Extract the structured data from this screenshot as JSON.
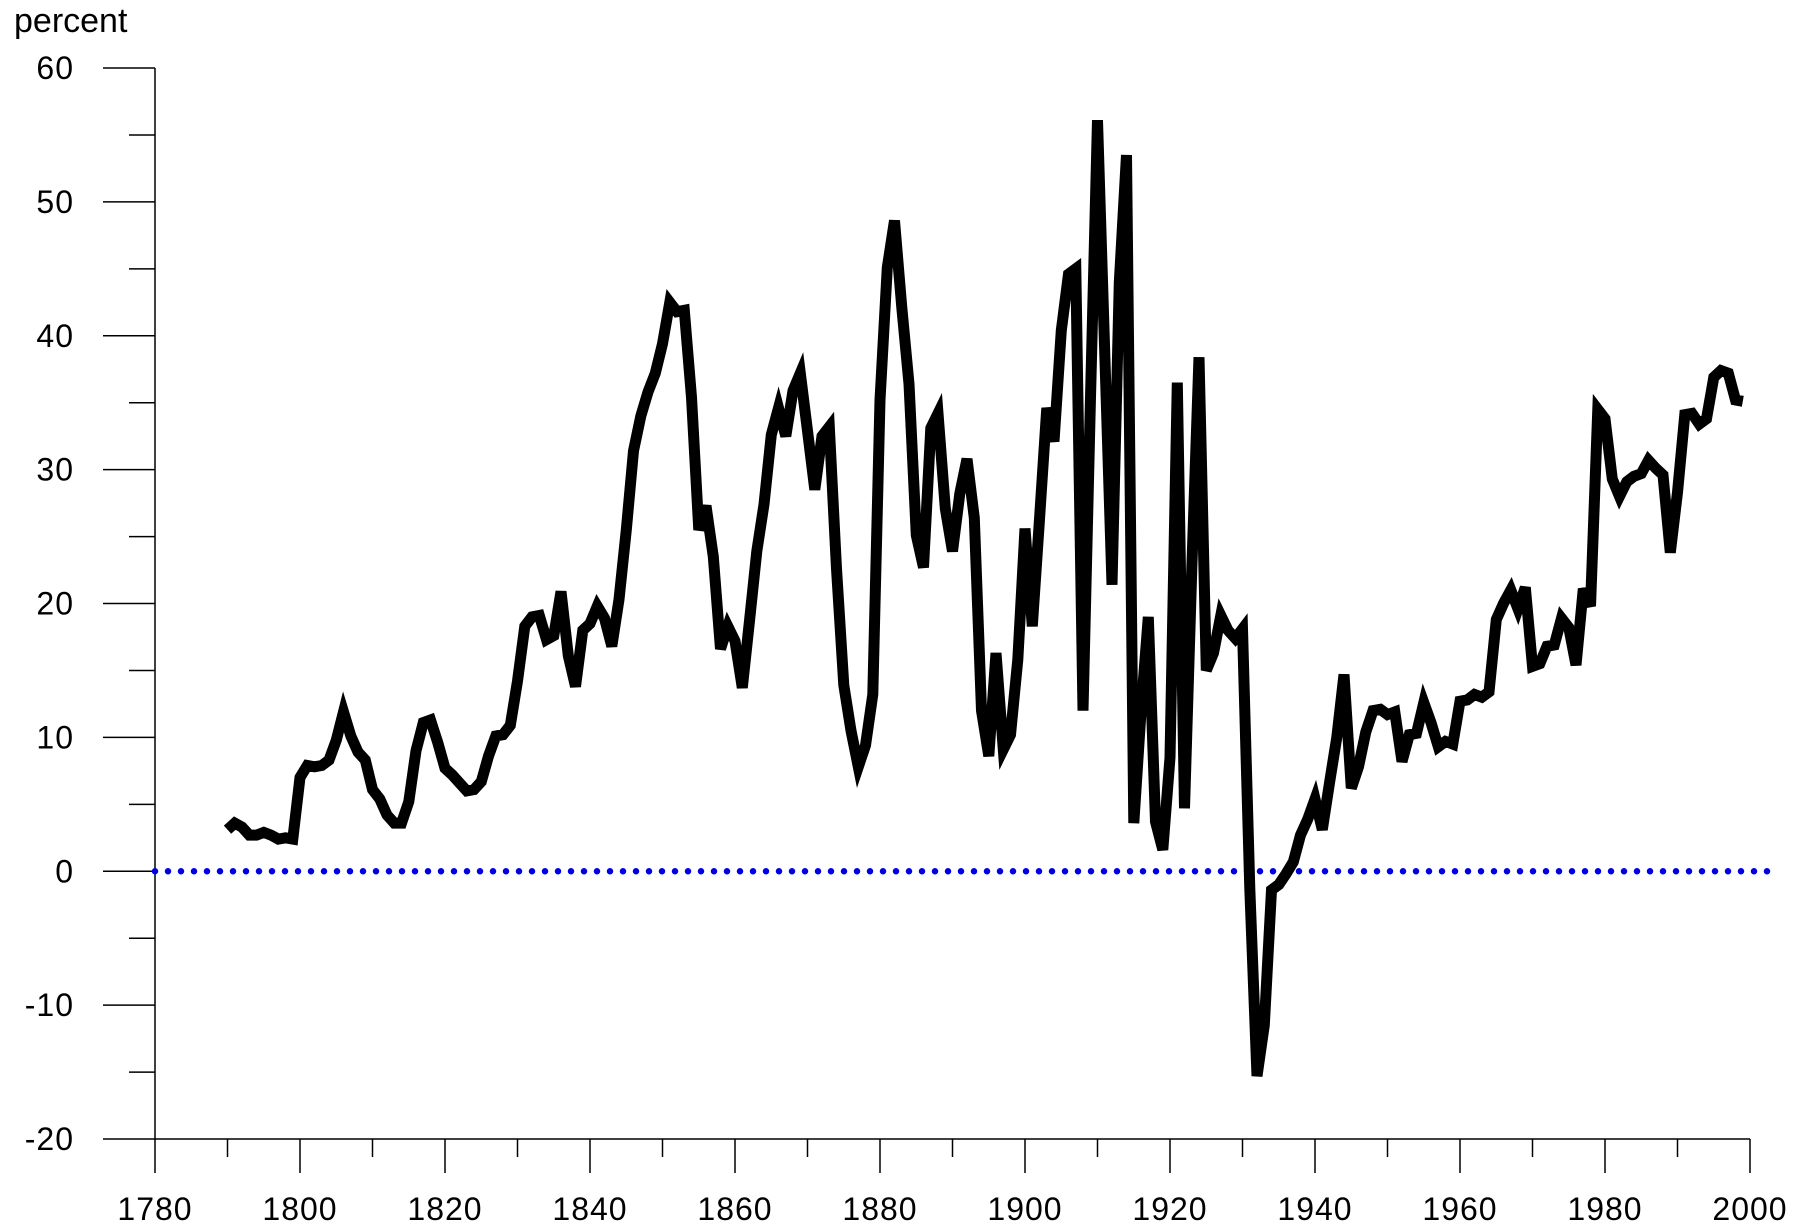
{
  "chart_data": {
    "type": "line",
    "y_unit_label": "percent",
    "xlim": [
      1780,
      2000
    ],
    "ylim": [
      -20,
      60
    ],
    "x_ticks": [
      "1780",
      "1800",
      "1820",
      "1840",
      "1860",
      "1880",
      "1900",
      "1920",
      "1940",
      "1960",
      "1980",
      "2000"
    ],
    "x_tick_values": [
      1780,
      1800,
      1820,
      1840,
      1860,
      1880,
      1900,
      1920,
      1940,
      1960,
      1980,
      2000
    ],
    "y_ticks": [
      "60",
      "50",
      "40",
      "30",
      "20",
      "10",
      "0",
      "-10",
      "-20"
    ],
    "y_tick_values": [
      60,
      50,
      40,
      30,
      20,
      10,
      0,
      -10,
      -20
    ],
    "reference_line": {
      "y": 0,
      "style": "dotted",
      "color": "#0000e6"
    },
    "series": [
      {
        "color": "#000000",
        "x": [
          1790,
          1791,
          1792,
          1793,
          1794,
          1795,
          1796,
          1797,
          1798,
          1799,
          1800,
          1801,
          1802,
          1803,
          1804,
          1805,
          1806,
          1807,
          1808,
          1809,
          1810,
          1811,
          1812,
          1813,
          1814,
          1815,
          1816,
          1817,
          1818,
          1819,
          1820,
          1821,
          1822,
          1823,
          1824,
          1825,
          1826,
          1827,
          1828,
          1829,
          1830,
          1831,
          1832,
          1833,
          1834,
          1835,
          1836,
          1837,
          1838,
          1839,
          1840,
          1841,
          1842,
          1843,
          1844,
          1845,
          1846,
          1847,
          1848,
          1849,
          1850,
          1851,
          1852,
          1853,
          1854,
          1855,
          1856,
          1857,
          1858,
          1859,
          1860,
          1861,
          1862,
          1863,
          1864,
          1865,
          1866,
          1867,
          1868,
          1869,
          1870,
          1871,
          1872,
          1873,
          1874,
          1875,
          1876,
          1877,
          1878,
          1879,
          1880,
          1881,
          1882,
          1883,
          1884,
          1885,
          1886,
          1887,
          1888,
          1889,
          1890,
          1891,
          1892,
          1893,
          1894,
          1895,
          1896,
          1897,
          1898,
          1899,
          1900,
          1901,
          1902,
          1903,
          1904,
          1905,
          1906,
          1907,
          1908,
          1909,
          1910,
          1911,
          1912,
          1913,
          1914,
          1915,
          1916,
          1917,
          1918,
          1919,
          1920,
          1921,
          1922,
          1923,
          1924,
          1925,
          1926,
          1927,
          1928,
          1929,
          1930,
          1931,
          1932,
          1933,
          1934,
          1935,
          1936,
          1937,
          1938,
          1939,
          1940,
          1941,
          1942,
          1943,
          1944,
          1945,
          1946,
          1947,
          1948,
          1949,
          1950,
          1951,
          1952,
          1953,
          1954,
          1955,
          1956,
          1957,
          1958,
          1959,
          1960,
          1961,
          1962,
          1963,
          1964,
          1965,
          1966,
          1967,
          1968,
          1969,
          1970,
          1971,
          1972,
          1973,
          1974,
          1975,
          1976,
          1977,
          1978,
          1979,
          1980,
          1981,
          1982,
          1983,
          1984,
          1985,
          1986,
          1987,
          1988,
          1989,
          1990,
          1991,
          1992,
          1993,
          1994,
          1995,
          1996,
          1997,
          1998,
          1999
        ],
        "y": [
          3.1,
          3.6,
          3.3,
          2.7,
          2.7,
          2.9,
          2.7,
          2.4,
          2.5,
          2.4,
          7.0,
          7.9,
          7.8,
          7.9,
          8.3,
          9.8,
          11.9,
          10.1,
          8.9,
          8.3,
          6.1,
          5.4,
          4.2,
          3.6,
          3.6,
          5.2,
          9.0,
          11.1,
          11.3,
          9.6,
          7.7,
          7.2,
          6.6,
          6.0,
          6.1,
          6.7,
          8.6,
          10.1,
          10.2,
          10.9,
          14.2,
          18.3,
          19.0,
          19.1,
          17.3,
          17.6,
          20.9,
          16.1,
          13.8,
          18.0,
          18.5,
          19.8,
          18.9,
          16.8,
          20.3,
          25.5,
          31.4,
          34.0,
          35.8,
          37.2,
          39.4,
          42.5,
          41.8,
          41.9,
          35.4,
          25.5,
          27.3,
          23.5,
          16.6,
          18.3,
          17.2,
          13.7,
          18.7,
          23.9,
          27.4,
          32.6,
          34.6,
          32.5,
          35.9,
          37.2,
          32.9,
          28.5,
          32.5,
          33.2,
          22.6,
          13.9,
          10.5,
          7.8,
          9.4,
          13.2,
          35.2,
          45.1,
          48.6,
          42.1,
          36.4,
          25.1,
          22.7,
          33.1,
          34.2,
          27.1,
          23.9,
          28.2,
          30.8,
          26.4,
          12.0,
          8.6,
          16.3,
          9.1,
          10.2,
          15.8,
          25.6,
          18.3,
          26.3,
          34.6,
          32.1,
          40.4,
          44.6,
          45.0,
          12.0,
          34.8,
          56.1,
          38.6,
          21.4,
          44.0,
          53.5,
          3.6,
          11.9,
          19.0,
          3.7,
          1.6,
          8.5,
          36.5,
          4.7,
          22.6,
          38.4,
          15.0,
          16.3,
          19.1,
          18.0,
          17.4,
          18.1,
          -1.3,
          -15.3,
          -11.5,
          -1.4,
          -1.0,
          -0.2,
          0.7,
          2.7,
          3.9,
          5.4,
          3.1,
          6.6,
          10.0,
          14.7,
          6.2,
          7.8,
          10.4,
          12.0,
          12.1,
          11.7,
          11.9,
          8.2,
          10.2,
          10.3,
          12.6,
          11.1,
          9.3,
          9.7,
          9.5,
          12.7,
          12.8,
          13.2,
          13.0,
          13.4,
          18.8,
          20.0,
          21.0,
          19.6,
          21.2,
          15.3,
          15.5,
          16.8,
          16.9,
          18.9,
          18.2,
          15.4,
          21.1,
          19.8,
          34.5,
          33.8,
          29.3,
          28.0,
          29.1,
          29.5,
          29.7,
          30.7,
          30.1,
          29.6,
          23.8,
          28.3,
          34.1,
          34.2,
          33.4,
          33.8,
          36.9,
          37.4,
          37.2,
          35.2,
          35.1
        ]
      }
    ]
  }
}
